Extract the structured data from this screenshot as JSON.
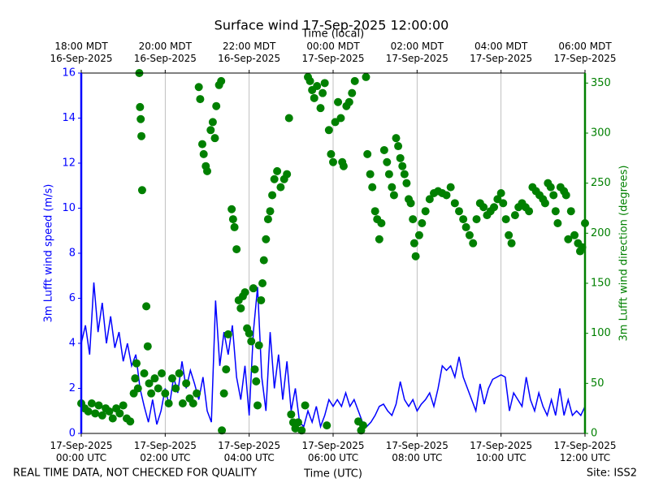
{
  "chart_data": {
    "type": "line",
    "title": "Surface wind 17-Sep-2025 12:00:00",
    "xlabel": "Time (UTC)",
    "x2label": "Time (local)",
    "note": "REAL TIME DATA, NOT CHECKED FOR QUALITY",
    "site": "Site: ISS2",
    "grid": true,
    "xlim": [
      "2025-09-17 00:00",
      "2025-09-17 12:00"
    ],
    "xticks": [
      {
        "value": "2025-09-17 00:00",
        "label": "17-Sep-2025\n00:00 UTC"
      },
      {
        "value": "2025-09-17 02:00",
        "label": "17-Sep-2025\n02:00 UTC"
      },
      {
        "value": "2025-09-17 04:00",
        "label": "17-Sep-2025\n04:00 UTC"
      },
      {
        "value": "2025-09-17 06:00",
        "label": "17-Sep-2025\n06:00 UTC"
      },
      {
        "value": "2025-09-17 08:00",
        "label": "17-Sep-2025\n08:00 UTC"
      },
      {
        "value": "2025-09-17 10:00",
        "label": "17-Sep-2025\n10:00 UTC"
      },
      {
        "value": "2025-09-17 12:00",
        "label": "17-Sep-2025\n12:00 UTC"
      }
    ],
    "x2ticks": [
      {
        "value": "2025-09-17 00:00",
        "label": "18:00 MDT\n16-Sep-2025"
      },
      {
        "value": "2025-09-17 02:00",
        "label": "20:00 MDT\n16-Sep-2025"
      },
      {
        "value": "2025-09-17 04:00",
        "label": "22:00 MDT\n16-Sep-2025"
      },
      {
        "value": "2025-09-17 06:00",
        "label": "00:00 MDT\n17-Sep-2025"
      },
      {
        "value": "2025-09-17 08:00",
        "label": "02:00 MDT\n17-Sep-2025"
      },
      {
        "value": "2025-09-17 10:00",
        "label": "04:00 MDT\n17-Sep-2025"
      },
      {
        "value": "2025-09-17 12:00",
        "label": "06:00 MDT\n17-Sep-2025"
      }
    ],
    "ylim": [
      0,
      16
    ],
    "yticks": [
      0,
      2,
      4,
      6,
      8,
      10,
      12,
      14,
      16
    ],
    "y2lim": [
      0,
      360
    ],
    "y2ticks": [
      0,
      50,
      100,
      150,
      200,
      250,
      300,
      350
    ],
    "series": [
      {
        "name": "3m Lufft wind speed (m/s)",
        "type": "line",
        "color": "#0000ff",
        "x": [
          "2025-09-17 00:00",
          "2025-09-17 00:06",
          "2025-09-17 00:12",
          "2025-09-17 00:18",
          "2025-09-17 00:24",
          "2025-09-17 00:30",
          "2025-09-17 00:36",
          "2025-09-17 00:42",
          "2025-09-17 00:48",
          "2025-09-17 00:54",
          "2025-09-17 01:00",
          "2025-09-17 01:06",
          "2025-09-17 01:12",
          "2025-09-17 01:18",
          "2025-09-17 01:24",
          "2025-09-17 01:30",
          "2025-09-17 01:36",
          "2025-09-17 01:42",
          "2025-09-17 01:48",
          "2025-09-17 01:54",
          "2025-09-17 02:00",
          "2025-09-17 02:06",
          "2025-09-17 02:12",
          "2025-09-17 02:18",
          "2025-09-17 02:24",
          "2025-09-17 02:30",
          "2025-09-17 02:36",
          "2025-09-17 02:42",
          "2025-09-17 02:48",
          "2025-09-17 02:54",
          "2025-09-17 03:00",
          "2025-09-17 03:06",
          "2025-09-17 03:12",
          "2025-09-17 03:18",
          "2025-09-17 03:24",
          "2025-09-17 03:30",
          "2025-09-17 03:36",
          "2025-09-17 03:42",
          "2025-09-17 03:48",
          "2025-09-17 03:54",
          "2025-09-17 04:00",
          "2025-09-17 04:06",
          "2025-09-17 04:12",
          "2025-09-17 04:18",
          "2025-09-17 04:24",
          "2025-09-17 04:30",
          "2025-09-17 04:36",
          "2025-09-17 04:42",
          "2025-09-17 04:48",
          "2025-09-17 04:54",
          "2025-09-17 05:00",
          "2025-09-17 05:06",
          "2025-09-17 05:12",
          "2025-09-17 05:18",
          "2025-09-17 05:24",
          "2025-09-17 05:30",
          "2025-09-17 05:36",
          "2025-09-17 05:42",
          "2025-09-17 05:48",
          "2025-09-17 05:54",
          "2025-09-17 06:00",
          "2025-09-17 06:06",
          "2025-09-17 06:12",
          "2025-09-17 06:18",
          "2025-09-17 06:24",
          "2025-09-17 06:30",
          "2025-09-17 06:36",
          "2025-09-17 06:42",
          "2025-09-17 06:48",
          "2025-09-17 06:54",
          "2025-09-17 07:00",
          "2025-09-17 07:06",
          "2025-09-17 07:12",
          "2025-09-17 07:18",
          "2025-09-17 07:24",
          "2025-09-17 07:30",
          "2025-09-17 07:36",
          "2025-09-17 07:42",
          "2025-09-17 07:48",
          "2025-09-17 07:54",
          "2025-09-17 08:00",
          "2025-09-17 08:06",
          "2025-09-17 08:12",
          "2025-09-17 08:18",
          "2025-09-17 08:24",
          "2025-09-17 08:30",
          "2025-09-17 08:36",
          "2025-09-17 08:42",
          "2025-09-17 08:48",
          "2025-09-17 08:54",
          "2025-09-17 09:00",
          "2025-09-17 09:06",
          "2025-09-17 09:12",
          "2025-09-17 09:18",
          "2025-09-17 09:24",
          "2025-09-17 09:30",
          "2025-09-17 09:36",
          "2025-09-17 09:42",
          "2025-09-17 09:48",
          "2025-09-17 09:54",
          "2025-09-17 10:00",
          "2025-09-17 10:06",
          "2025-09-17 10:12",
          "2025-09-17 10:18",
          "2025-09-17 10:24",
          "2025-09-17 10:30",
          "2025-09-17 10:36",
          "2025-09-17 10:42",
          "2025-09-17 10:48",
          "2025-09-17 10:54",
          "2025-09-17 11:00",
          "2025-09-17 11:06",
          "2025-09-17 11:12",
          "2025-09-17 11:18",
          "2025-09-17 11:24",
          "2025-09-17 11:30",
          "2025-09-17 11:36",
          "2025-09-17 11:42",
          "2025-09-17 11:48",
          "2025-09-17 11:54",
          "2025-09-17 12:00"
        ],
        "values": [
          4.0,
          4.8,
          3.5,
          6.7,
          4.5,
          5.8,
          4.0,
          5.2,
          3.8,
          4.5,
          3.2,
          4.0,
          3.0,
          3.5,
          2.0,
          1.2,
          0.5,
          1.5,
          0.4,
          1.0,
          2.0,
          1.2,
          2.5,
          1.8,
          3.2,
          2.0,
          2.8,
          2.2,
          1.5,
          2.5,
          1.0,
          0.5,
          5.9,
          3.0,
          4.5,
          3.5,
          4.8,
          2.5,
          1.5,
          3.0,
          0.8,
          4.5,
          6.5,
          2.5,
          1.0,
          4.5,
          2.0,
          3.5,
          1.5,
          3.2,
          1.0,
          2.0,
          0.5,
          0.3,
          1.0,
          0.5,
          1.2,
          0.3,
          0.8,
          1.5,
          1.2,
          1.5,
          1.2,
          1.8,
          1.2,
          1.5,
          1.0,
          0.5,
          0.3,
          0.5,
          0.8,
          1.2,
          1.3,
          1.0,
          0.8,
          1.3,
          2.3,
          1.5,
          1.2,
          1.5,
          1.0,
          1.3,
          1.5,
          1.8,
          1.2,
          2.0,
          3.0,
          2.8,
          3.0,
          2.5,
          3.4,
          2.5,
          2.0,
          1.5,
          1.0,
          2.2,
          1.3,
          2.0,
          2.4,
          2.5,
          2.6,
          2.5,
          1.0,
          1.8,
          1.5,
          1.2,
          2.5,
          1.5,
          1.0,
          1.8,
          1.2,
          0.8,
          1.5,
          0.8,
          2.0,
          0.8,
          1.5,
          0.8,
          1.0,
          0.8,
          1.2
        ]
      },
      {
        "name": "3m Lufft wind direction (degrees)",
        "type": "scatter",
        "axis": "y2",
        "color": "#008000",
        "x": [
          "2025-09-17 00:00",
          "2025-09-17 00:05",
          "2025-09-17 00:10",
          "2025-09-17 00:15",
          "2025-09-17 00:20",
          "2025-09-17 00:25",
          "2025-09-17 00:30",
          "2025-09-17 00:35",
          "2025-09-17 00:40",
          "2025-09-17 00:45",
          "2025-09-17 00:50",
          "2025-09-17 00:55",
          "2025-09-17 01:00",
          "2025-09-17 01:05",
          "2025-09-17 01:10",
          "2025-09-17 01:15",
          "2025-09-17 01:17",
          "2025-09-17 01:19",
          "2025-09-17 01:21",
          "2025-09-17 01:23",
          "2025-09-17 01:24",
          "2025-09-17 01:25",
          "2025-09-17 01:26",
          "2025-09-17 01:27",
          "2025-09-17 01:30",
          "2025-09-17 01:33",
          "2025-09-17 01:35",
          "2025-09-17 01:37",
          "2025-09-17 01:40",
          "2025-09-17 01:45",
          "2025-09-17 01:50",
          "2025-09-17 01:55",
          "2025-09-17 02:00",
          "2025-09-17 02:05",
          "2025-09-17 02:10",
          "2025-09-17 02:15",
          "2025-09-17 02:20",
          "2025-09-17 02:25",
          "2025-09-17 02:30",
          "2025-09-17 02:35",
          "2025-09-17 02:40",
          "2025-09-17 02:45",
          "2025-09-17 02:48",
          "2025-09-17 02:50",
          "2025-09-17 02:53",
          "2025-09-17 02:55",
          "2025-09-17 02:58",
          "2025-09-17 03:00",
          "2025-09-17 03:05",
          "2025-09-17 03:08",
          "2025-09-17 03:11",
          "2025-09-17 03:13",
          "2025-09-17 03:17",
          "2025-09-17 03:20",
          "2025-09-17 03:21",
          "2025-09-17 03:24",
          "2025-09-17 03:27",
          "2025-09-17 03:30",
          "2025-09-17 03:35",
          "2025-09-17 03:37",
          "2025-09-17 03:39",
          "2025-09-17 03:42",
          "2025-09-17 03:45",
          "2025-09-17 03:48",
          "2025-09-17 03:51",
          "2025-09-17 03:54",
          "2025-09-17 03:57",
          "2025-09-17 04:00",
          "2025-09-17 04:03",
          "2025-09-17 04:06",
          "2025-09-17 04:08",
          "2025-09-17 04:10",
          "2025-09-17 04:12",
          "2025-09-17 04:14",
          "2025-09-17 04:17",
          "2025-09-17 04:19",
          "2025-09-17 04:21",
          "2025-09-17 04:24",
          "2025-09-17 04:27",
          "2025-09-17 04:30",
          "2025-09-17 04:33",
          "2025-09-17 04:36",
          "2025-09-17 04:40",
          "2025-09-17 04:45",
          "2025-09-17 04:50",
          "2025-09-17 04:54",
          "2025-09-17 04:57",
          "2025-09-17 05:00",
          "2025-09-17 05:03",
          "2025-09-17 05:06",
          "2025-09-17 05:10",
          "2025-09-17 05:15",
          "2025-09-17 05:20",
          "2025-09-17 05:24",
          "2025-09-17 05:27",
          "2025-09-17 05:30",
          "2025-09-17 05:33",
          "2025-09-17 05:37",
          "2025-09-17 05:42",
          "2025-09-17 05:45",
          "2025-09-17 05:48",
          "2025-09-17 05:51",
          "2025-09-17 05:54",
          "2025-09-17 05:57",
          "2025-09-17 06:00",
          "2025-09-17 06:03",
          "2025-09-17 06:07",
          "2025-09-17 06:11",
          "2025-09-17 06:13",
          "2025-09-17 06:15",
          "2025-09-17 06:19",
          "2025-09-17 06:23",
          "2025-09-17 06:27",
          "2025-09-17 06:31",
          "2025-09-17 06:36",
          "2025-09-17 06:40",
          "2025-09-17 06:43",
          "2025-09-17 06:47",
          "2025-09-17 06:49",
          "2025-09-17 06:53",
          "2025-09-17 06:56",
          "2025-09-17 07:00",
          "2025-09-17 07:03",
          "2025-09-17 07:06",
          "2025-09-17 07:09",
          "2025-09-17 07:13",
          "2025-09-17 07:17",
          "2025-09-17 07:20",
          "2025-09-17 07:24",
          "2025-09-17 07:27",
          "2025-09-17 07:30",
          "2025-09-17 07:33",
          "2025-09-17 07:36",
          "2025-09-17 07:39",
          "2025-09-17 07:42",
          "2025-09-17 07:45",
          "2025-09-17 07:48",
          "2025-09-17 07:51",
          "2025-09-17 07:54",
          "2025-09-17 07:56",
          "2025-09-17 07:58",
          "2025-09-17 08:03",
          "2025-09-17 08:07",
          "2025-09-17 08:12",
          "2025-09-17 08:18",
          "2025-09-17 08:24",
          "2025-09-17 08:30",
          "2025-09-17 08:36",
          "2025-09-17 08:42",
          "2025-09-17 08:48",
          "2025-09-17 08:54",
          "2025-09-17 09:00",
          "2025-09-17 09:06",
          "2025-09-17 09:10",
          "2025-09-17 09:15",
          "2025-09-17 09:20",
          "2025-09-17 09:25",
          "2025-09-17 09:30",
          "2025-09-17 09:35",
          "2025-09-17 09:40",
          "2025-09-17 09:45",
          "2025-09-17 09:50",
          "2025-09-17 09:55",
          "2025-09-17 10:00",
          "2025-09-17 10:03",
          "2025-09-17 10:07",
          "2025-09-17 10:11",
          "2025-09-17 10:15",
          "2025-09-17 10:20",
          "2025-09-17 10:25",
          "2025-09-17 10:30",
          "2025-09-17 10:35",
          "2025-09-17 10:40",
          "2025-09-17 10:45",
          "2025-09-17 10:50",
          "2025-09-17 10:55",
          "2025-09-17 11:00",
          "2025-09-17 11:03",
          "2025-09-17 11:07",
          "2025-09-17 11:11",
          "2025-09-17 11:15",
          "2025-09-17 11:18",
          "2025-09-17 11:21",
          "2025-09-17 11:25",
          "2025-09-17 11:30",
          "2025-09-17 11:33",
          "2025-09-17 11:36",
          "2025-09-17 11:40",
          "2025-09-17 11:45",
          "2025-09-17 11:50",
          "2025-09-17 11:53",
          "2025-09-17 11:56",
          "2025-09-17 12:00"
        ],
        "values": [
          30,
          25,
          22,
          30,
          20,
          28,
          18,
          25,
          22,
          15,
          25,
          20,
          28,
          15,
          12,
          40,
          55,
          70,
          45,
          360,
          326,
          314,
          297,
          243,
          60,
          127,
          87,
          50,
          40,
          55,
          45,
          60,
          40,
          30,
          55,
          45,
          60,
          30,
          50,
          35,
          30,
          40,
          346,
          334,
          289,
          279,
          267,
          262,
          303,
          311,
          295,
          327,
          348,
          352,
          3,
          40,
          64,
          99,
          224,
          214,
          206,
          184,
          133,
          125,
          137,
          141,
          105,
          100,
          92,
          145,
          64,
          52,
          28,
          88,
          133,
          150,
          173,
          194,
          214,
          222,
          238,
          254,
          262,
          246,
          254,
          259,
          315,
          19,
          11,
          5,
          11,
          3,
          28,
          356,
          352,
          343,
          335,
          347,
          325,
          340,
          350,
          8,
          303,
          279,
          271,
          311,
          331,
          315,
          271,
          267,
          327,
          331,
          340,
          352,
          12,
          3,
          8,
          356,
          279,
          259,
          246,
          222,
          214,
          194,
          210,
          283,
          271,
          259,
          246,
          238,
          295,
          287,
          275,
          267,
          259,
          250,
          234,
          230,
          214,
          190,
          177,
          198,
          210,
          222,
          234,
          240,
          242,
          240,
          238,
          246,
          230,
          222,
          214,
          206,
          198,
          190,
          214,
          230,
          226,
          218,
          222,
          226,
          234,
          240,
          230,
          214,
          198,
          190,
          218,
          226,
          230,
          226,
          222,
          246,
          242,
          238,
          234,
          230,
          250,
          246,
          238,
          222,
          210,
          246,
          242,
          238,
          194,
          222,
          198,
          190,
          182,
          186,
          210
        ]
      }
    ]
  }
}
